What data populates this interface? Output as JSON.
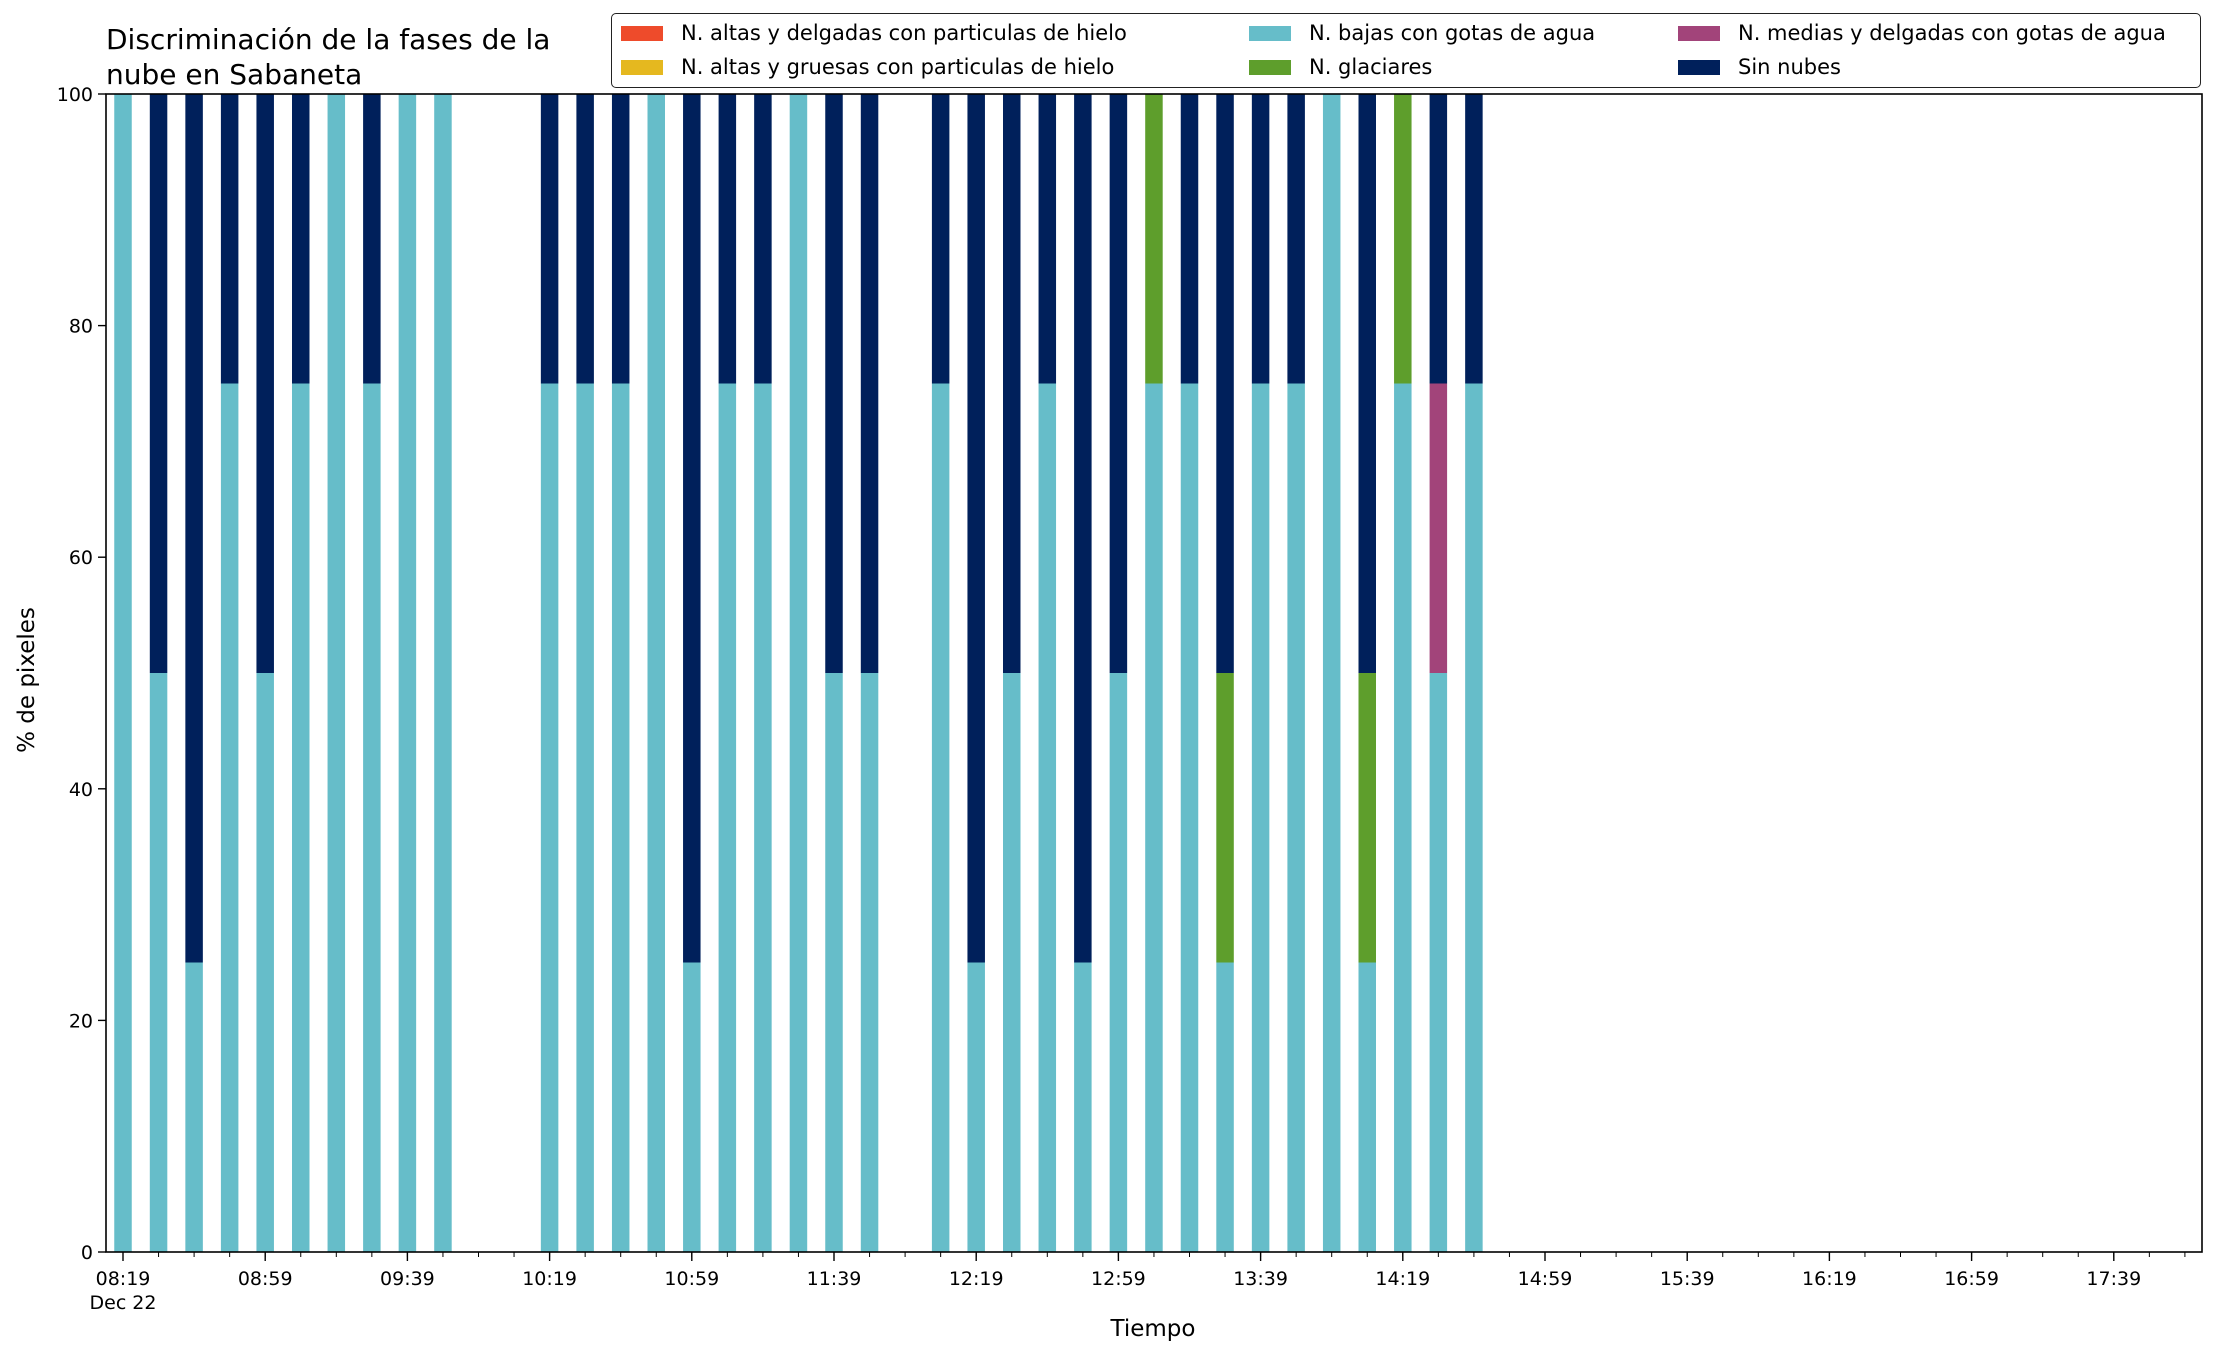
{
  "chart_data": {
    "type": "bar",
    "stacked": true,
    "title": "Discriminación de la fases de la\nnube en Sabaneta",
    "xlabel": "Tiempo",
    "ylabel": "% de pixeles",
    "ylim": [
      0,
      100
    ],
    "yticks": [
      0,
      20,
      40,
      60,
      80,
      100
    ],
    "x_date": "Dec 22",
    "x_start": "08:19",
    "x_end": "17:59",
    "interval_minutes": 10,
    "xtick_labels": [
      "08:19",
      "08:59",
      "09:39",
      "10:19",
      "10:59",
      "11:39",
      "12:19",
      "12:59",
      "13:39",
      "14:19",
      "14:59",
      "15:39",
      "16:19",
      "16:59",
      "17:39"
    ],
    "legend_position": "top-right",
    "grid": false,
    "series": [
      {
        "name": "N. altas y delgadas con particulas de hielo",
        "color": "#ee4b2b"
      },
      {
        "name": "N. altas y gruesas con particulas de hielo",
        "color": "#e5b81f"
      },
      {
        "name": "N. bajas con gotas de agua",
        "color": "#66bdc9"
      },
      {
        "name": "N. glaciares",
        "color": "#5e9e2c"
      },
      {
        "name": "N. medias y delgadas con gotas de agua",
        "color": "#a2447a"
      },
      {
        "name": "Sin nubes",
        "color": "#00205b"
      }
    ],
    "bars": [
      {
        "time": "08:19",
        "values": [
          0,
          0,
          100,
          0,
          0,
          0
        ]
      },
      {
        "time": "08:29",
        "values": [
          0,
          0,
          50,
          0,
          0,
          50
        ]
      },
      {
        "time": "08:39",
        "values": [
          0,
          0,
          25,
          0,
          0,
          75
        ]
      },
      {
        "time": "08:49",
        "values": [
          0,
          0,
          75,
          0,
          0,
          25
        ]
      },
      {
        "time": "08:59",
        "values": [
          0,
          0,
          50,
          0,
          0,
          50
        ]
      },
      {
        "time": "09:09",
        "values": [
          0,
          0,
          75,
          0,
          0,
          25
        ]
      },
      {
        "time": "09:19",
        "values": [
          0,
          0,
          100,
          0,
          0,
          0
        ]
      },
      {
        "time": "09:29",
        "values": [
          0,
          0,
          75,
          0,
          0,
          25
        ]
      },
      {
        "time": "09:39",
        "values": [
          0,
          0,
          100,
          0,
          0,
          0
        ]
      },
      {
        "time": "09:49",
        "values": [
          0,
          0,
          100,
          0,
          0,
          0
        ]
      },
      {
        "time": "10:19",
        "values": [
          0,
          0,
          75,
          0,
          0,
          25
        ]
      },
      {
        "time": "10:29",
        "values": [
          0,
          0,
          75,
          0,
          0,
          25
        ]
      },
      {
        "time": "10:39",
        "values": [
          0,
          0,
          75,
          0,
          0,
          25
        ]
      },
      {
        "time": "10:49",
        "values": [
          0,
          0,
          100,
          0,
          0,
          0
        ]
      },
      {
        "time": "10:59",
        "values": [
          0,
          0,
          25,
          0,
          0,
          75
        ]
      },
      {
        "time": "11:09",
        "values": [
          0,
          0,
          75,
          0,
          0,
          25
        ]
      },
      {
        "time": "11:19",
        "values": [
          0,
          0,
          75,
          0,
          0,
          25
        ]
      },
      {
        "time": "11:29",
        "values": [
          0,
          0,
          100,
          0,
          0,
          0
        ]
      },
      {
        "time": "11:39",
        "values": [
          0,
          0,
          50,
          0,
          0,
          50
        ]
      },
      {
        "time": "11:49",
        "values": [
          0,
          0,
          50,
          0,
          0,
          50
        ]
      },
      {
        "time": "12:09",
        "values": [
          0,
          0,
          75,
          0,
          0,
          25
        ]
      },
      {
        "time": "12:19",
        "values": [
          0,
          0,
          25,
          0,
          0,
          75
        ]
      },
      {
        "time": "12:29",
        "values": [
          0,
          0,
          50,
          0,
          0,
          50
        ]
      },
      {
        "time": "12:39",
        "values": [
          0,
          0,
          75,
          0,
          0,
          25
        ]
      },
      {
        "time": "12:49",
        "values": [
          0,
          0,
          25,
          0,
          0,
          75
        ]
      },
      {
        "time": "12:59",
        "values": [
          0,
          0,
          50,
          0,
          0,
          50
        ]
      },
      {
        "time": "13:09",
        "values": [
          0,
          0,
          75,
          25,
          0,
          0
        ]
      },
      {
        "time": "13:19",
        "values": [
          0,
          0,
          75,
          0,
          0,
          25
        ]
      },
      {
        "time": "13:29",
        "values": [
          0,
          0,
          25,
          25,
          0,
          50
        ]
      },
      {
        "time": "13:39",
        "values": [
          0,
          0,
          75,
          0,
          0,
          25
        ]
      },
      {
        "time": "13:49",
        "values": [
          0,
          0,
          75,
          0,
          0,
          25
        ]
      },
      {
        "time": "13:59",
        "values": [
          0,
          0,
          100,
          0,
          0,
          0
        ]
      },
      {
        "time": "14:09",
        "values": [
          0,
          0,
          25,
          25,
          0,
          50
        ]
      },
      {
        "time": "14:19",
        "values": [
          0,
          0,
          75,
          25,
          0,
          0
        ]
      },
      {
        "time": "14:29",
        "values": [
          0,
          0,
          50,
          0,
          25,
          25
        ]
      },
      {
        "time": "14:39",
        "values": [
          0,
          0,
          75,
          0,
          0,
          25
        ]
      }
    ]
  }
}
